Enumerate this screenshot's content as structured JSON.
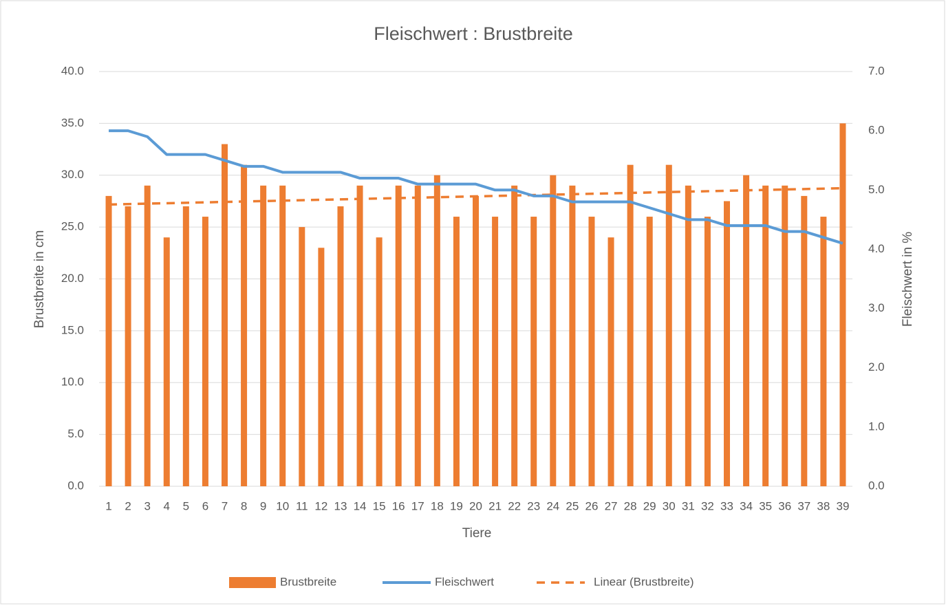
{
  "chart_data": {
    "type": "bar-line",
    "title": "Fleischwert : Brustbreite",
    "x_label": "Tiere",
    "y_label": "Brustbreite in cm",
    "y2_label": "Fleischwert in %",
    "categories": [
      "1",
      "2",
      "3",
      "4",
      "5",
      "6",
      "7",
      "8",
      "9",
      "10",
      "11",
      "12",
      "13",
      "14",
      "15",
      "16",
      "17",
      "18",
      "19",
      "20",
      "21",
      "22",
      "23",
      "24",
      "25",
      "26",
      "27",
      "28",
      "29",
      "30",
      "31",
      "32",
      "33",
      "34",
      "35",
      "36",
      "37",
      "38",
      "39"
    ],
    "series": [
      {
        "name": "Brustbreite",
        "type": "bar",
        "axis": "y",
        "color": "#ed7d31",
        "values": [
          28,
          27,
          29,
          24,
          27,
          26,
          33,
          31,
          29,
          29,
          25,
          23,
          27,
          29,
          24,
          29,
          29,
          30,
          26,
          28,
          26,
          29,
          26,
          30,
          29,
          26,
          24,
          31,
          26,
          31,
          29,
          26,
          27.5,
          30,
          29,
          29,
          28,
          26,
          35
        ],
        "trendline": {
          "name": "Linear (Brustbreite)",
          "kind": "linear",
          "color": "#ed7d31",
          "dashed": true
        }
      },
      {
        "name": "Fleischwert",
        "type": "line",
        "axis": "y2",
        "color": "#5b9bd5",
        "values": [
          6.0,
          6.0,
          5.9,
          5.6,
          5.6,
          5.6,
          5.5,
          5.4,
          5.4,
          5.3,
          5.3,
          5.3,
          5.3,
          5.2,
          5.2,
          5.2,
          5.1,
          5.1,
          5.1,
          5.1,
          5.0,
          5.0,
          4.9,
          4.9,
          4.8,
          4.8,
          4.8,
          4.8,
          4.7,
          4.6,
          4.5,
          4.5,
          4.4,
          4.4,
          4.4,
          4.3,
          4.3,
          4.2,
          4.1
        ]
      }
    ],
    "ylim": [
      0,
      40
    ],
    "yticks": [
      {
        "value": 0,
        "label": "0.0"
      },
      {
        "value": 5,
        "label": "5.0"
      },
      {
        "value": 10,
        "label": "10.0"
      },
      {
        "value": 15,
        "label": "15.0"
      },
      {
        "value": 20,
        "label": "20.0"
      },
      {
        "value": 25,
        "label": "25.0"
      },
      {
        "value": 30,
        "label": "30.0"
      },
      {
        "value": 35,
        "label": "35.0"
      },
      {
        "value": 40,
        "label": "40.0"
      }
    ],
    "y2lim": [
      0,
      7
    ],
    "y2ticks": [
      {
        "value": 0,
        "label": "0.0"
      },
      {
        "value": 1,
        "label": "1.0"
      },
      {
        "value": 2,
        "label": "2.0"
      },
      {
        "value": 3,
        "label": "3.0"
      },
      {
        "value": 4,
        "label": "4.0"
      },
      {
        "value": 5,
        "label": "5.0"
      },
      {
        "value": 6,
        "label": "6.0"
      },
      {
        "value": 7,
        "label": "7.0"
      }
    ],
    "grid": true,
    "legend": "bottom"
  }
}
